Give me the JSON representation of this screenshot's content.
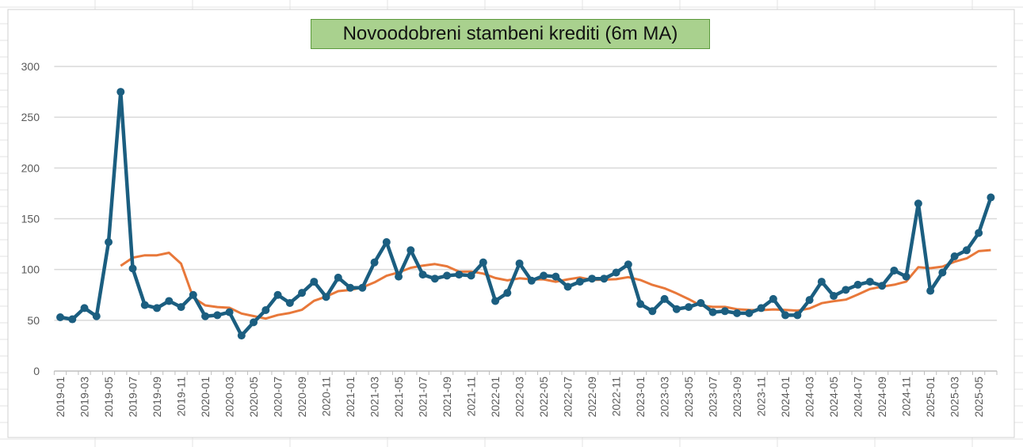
{
  "chart_data": {
    "type": "line",
    "title": "Novoodobreni stambeni krediti (6m MA)",
    "xlabel": "",
    "ylabel": "",
    "ylim": [
      0,
      300
    ],
    "yticks": [
      0,
      50,
      100,
      150,
      200,
      250,
      300
    ],
    "grid": true,
    "legend": "none",
    "x_start": "2019-01",
    "tick_every_months": 2,
    "series": [
      {
        "name": "Novoodobreni stambeni krediti",
        "color": "#1b5e80",
        "markers": true,
        "values": [
          53,
          51,
          62,
          54,
          127,
          275,
          101,
          65,
          62,
          69,
          63,
          75,
          54,
          55,
          58,
          35,
          48,
          60,
          75,
          67,
          77,
          88,
          73,
          92,
          82,
          82,
          107,
          127,
          93,
          119,
          95,
          91,
          94,
          95,
          94,
          107,
          69,
          77,
          106,
          89,
          94,
          93,
          83,
          88,
          91,
          91,
          97,
          105,
          66,
          59,
          71,
          61,
          63,
          67,
          58,
          59,
          57,
          57,
          62,
          71,
          55,
          55,
          70,
          88,
          74,
          80,
          85,
          88,
          84,
          99,
          93,
          165,
          79,
          97,
          113,
          119,
          136,
          171
        ]
      },
      {
        "name": "6m MA",
        "color": "#e8783a",
        "markers": false,
        "moving_average_of": 0,
        "window": 6
      }
    ]
  }
}
